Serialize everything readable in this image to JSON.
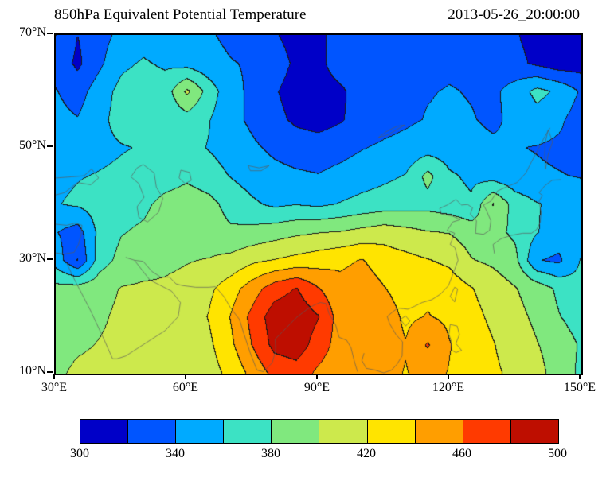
{
  "header": {
    "title": "850hPa Equivalent Potential Temperature",
    "timestamp": "2013-05-26_20:00:00"
  },
  "axes": {
    "x": {
      "min": 30,
      "max": 150,
      "ticks": [
        {
          "value": 30,
          "label": "30°E"
        },
        {
          "value": 60,
          "label": "60°E"
        },
        {
          "value": 90,
          "label": "90°E"
        },
        {
          "value": 120,
          "label": "120°E"
        },
        {
          "value": 150,
          "label": "150°E"
        }
      ]
    },
    "y": {
      "min": 10,
      "max": 70,
      "ticks": [
        {
          "value": 70,
          "label": "70°N"
        },
        {
          "value": 50,
          "label": "50°N"
        },
        {
          "value": 30,
          "label": "30°N"
        },
        {
          "value": 10,
          "label": "10°N"
        }
      ]
    }
  },
  "colorbar": {
    "labels": [
      "300",
      "340",
      "380",
      "420",
      "460",
      "500"
    ],
    "label_boundary_indices": [
      0,
      2,
      4,
      6,
      8,
      10
    ]
  },
  "chart_data": {
    "type": "heatmap",
    "title": "850hPa Equivalent Potential Temperature",
    "timestamp": "2013-05-26_20:00:00",
    "legend_position": "bottom",
    "grid": false,
    "contour_levels": [
      300,
      320,
      340,
      360,
      380,
      400,
      420,
      440,
      460,
      480,
      500
    ],
    "colors": [
      "#0000C8",
      "#0055FF",
      "#00AAFF",
      "#3CE2C4",
      "#80E87E",
      "#CDE94C",
      "#FFE400",
      "#FF9E00",
      "#FF3A00",
      "#BE0E00"
    ],
    "lon_min": 30,
    "lon_max": 150,
    "lon_step": 5,
    "lat_min": 10,
    "lat_max": 70,
    "lat_step": 5,
    "grid_order": "rows from 70N (top) to 10N (bottom), columns from 30E to 150E",
    "values": [
      [
        340,
        320,
        332,
        346,
        352,
        352,
        348,
        342,
        336,
        330,
        322,
        312,
        314,
        330,
        334,
        331,
        333,
        336,
        338,
        336,
        331,
        322,
        312,
        306,
        308
      ],
      [
        332,
        316,
        336,
        356,
        362,
        357,
        352,
        346,
        341,
        338,
        330,
        316,
        314,
        331,
        330,
        329,
        331,
        334,
        337,
        335,
        331,
        326,
        316,
        308,
        310
      ],
      [
        341,
        331,
        351,
        366,
        371,
        369,
        404,
        371,
        346,
        336,
        322,
        311,
        310,
        316,
        330,
        333,
        336,
        339,
        341,
        339,
        336,
        348,
        366,
        356,
        338
      ],
      [
        346,
        341,
        356,
        366,
        369,
        366,
        371,
        361,
        346,
        336,
        326,
        316,
        312,
        318,
        328,
        333,
        337,
        341,
        343,
        341,
        337,
        344,
        352,
        344,
        330
      ],
      [
        351,
        353,
        356,
        359,
        361,
        363,
        366,
        359,
        351,
        343,
        336,
        331,
        329,
        333,
        339,
        343,
        346,
        351,
        349,
        345,
        343,
        341,
        339,
        336,
        333
      ],
      [
        356,
        359,
        361,
        363,
        366,
        371,
        376,
        369,
        359,
        351,
        346,
        343,
        341,
        346,
        351,
        356,
        361,
        386,
        363,
        356,
        351,
        346,
        343,
        341,
        339
      ],
      [
        359,
        363,
        369,
        373,
        376,
        386,
        391,
        386,
        373,
        363,
        356,
        359,
        356,
        361,
        366,
        369,
        371,
        373,
        369,
        363,
        401,
        371,
        361,
        356,
        351
      ],
      [
        341,
        331,
        366,
        379,
        383,
        389,
        393,
        389,
        383,
        386,
        391,
        396,
        399,
        401,
        406,
        411,
        406,
        401,
        399,
        391,
        386,
        376,
        361,
        351,
        346
      ],
      [
        351,
        319,
        371,
        386,
        391,
        396,
        399,
        401,
        406,
        416,
        421,
        426,
        431,
        436,
        441,
        431,
        426,
        421,
        416,
        401,
        396,
        386,
        341,
        336,
        361
      ],
      [
        386,
        389,
        393,
        401,
        403,
        403,
        406,
        416,
        431,
        451,
        471,
        481,
        461,
        446,
        451,
        441,
        431,
        436,
        431,
        421,
        411,
        401,
        391,
        376,
        366
      ],
      [
        391,
        393,
        397,
        404,
        406,
        406,
        409,
        421,
        441,
        466,
        491,
        494,
        481,
        451,
        446,
        451,
        436,
        441,
        436,
        426,
        416,
        406,
        396,
        381,
        371
      ],
      [
        393,
        397,
        401,
        405,
        406,
        405,
        406,
        416,
        436,
        461,
        486,
        491,
        471,
        451,
        456,
        451,
        441,
        462,
        441,
        431,
        421,
        411,
        401,
        391,
        378
      ],
      [
        396,
        404,
        406,
        404,
        403,
        403,
        404,
        411,
        426,
        446,
        466,
        471,
        456,
        446,
        449,
        446,
        439,
        446,
        439,
        431,
        423,
        416,
        406,
        392,
        376
      ]
    ]
  },
  "map_outlines": [
    [
      [
        32.5,
        29.5
      ],
      [
        34,
        27
      ],
      [
        36,
        24
      ],
      [
        38,
        21
      ],
      [
        41,
        16
      ],
      [
        43,
        12.5
      ],
      [
        44,
        12.5
      ],
      [
        46,
        13
      ],
      [
        49,
        14.5
      ],
      [
        52,
        16
      ],
      [
        55,
        17.5
      ],
      [
        58,
        20
      ],
      [
        58.5,
        22.5
      ],
      [
        56.5,
        24.5
      ],
      [
        54,
        25.5
      ],
      [
        51.5,
        26.5
      ],
      [
        49.5,
        28.5
      ],
      [
        48,
        30
      ],
      [
        46,
        30.5
      ]
    ],
    [
      [
        48,
        30
      ],
      [
        50,
        29.8
      ],
      [
        52,
        28
      ],
      [
        54,
        27
      ],
      [
        56,
        27
      ],
      [
        57.5,
        25.8
      ],
      [
        59,
        25.5
      ],
      [
        62,
        25.2
      ],
      [
        65,
        25.2
      ],
      [
        66.5,
        25.3
      ]
    ],
    [
      [
        66.5,
        25.3
      ],
      [
        68.5,
        23.5
      ],
      [
        70,
        21.5
      ],
      [
        72,
        19.5
      ],
      [
        73,
        17
      ],
      [
        74.5,
        13.5
      ],
      [
        76,
        10.5
      ],
      [
        77.5,
        10.2
      ],
      [
        79.5,
        11.8
      ],
      [
        80.3,
        14
      ],
      [
        80.2,
        16
      ],
      [
        82.5,
        17.8
      ],
      [
        85,
        19.8
      ],
      [
        87.5,
        21.3
      ],
      [
        89,
        22
      ],
      [
        90.5,
        22.5
      ],
      [
        91.8,
        22.3
      ],
      [
        92.5,
        20.5
      ],
      [
        94,
        18.5
      ],
      [
        94.8,
        16.3
      ],
      [
        96.5,
        15.8
      ],
      [
        97.5,
        14.5
      ],
      [
        98.3,
        12
      ],
      [
        99,
        10.2
      ]
    ],
    [
      [
        100.5,
        13.5
      ],
      [
        100,
        12.2
      ],
      [
        101,
        10.8
      ],
      [
        103,
        10.5
      ],
      [
        105,
        10
      ],
      [
        106.8,
        10.5
      ],
      [
        108,
        11.5
      ],
      [
        109.2,
        13
      ],
      [
        109.3,
        15.5
      ],
      [
        107.8,
        16.8
      ],
      [
        106.3,
        18.8
      ],
      [
        105.8,
        20
      ],
      [
        107,
        20.8
      ],
      [
        108.2,
        21.5
      ]
    ],
    [
      [
        108.2,
        21.5
      ],
      [
        109.5,
        21.4
      ],
      [
        110.5,
        21.3
      ],
      [
        112,
        21.8
      ],
      [
        113.8,
        22.5
      ],
      [
        116,
        23
      ],
      [
        118,
        24
      ],
      [
        119.8,
        25.5
      ],
      [
        120.8,
        27.5
      ],
      [
        122,
        30
      ],
      [
        121.3,
        32.2
      ],
      [
        120.2,
        32.8
      ],
      [
        121.2,
        34.8
      ],
      [
        119.5,
        35.3
      ],
      [
        120.8,
        36.8
      ],
      [
        122.5,
        37.2
      ],
      [
        120.8,
        37.8
      ],
      [
        118.2,
        38.2
      ],
      [
        117.8,
        39.2
      ],
      [
        119.5,
        39.8
      ],
      [
        121.5,
        40.8
      ],
      [
        122.8,
        39.8
      ],
      [
        124.2,
        39.9
      ]
    ],
    [
      [
        124.2,
        39.9
      ],
      [
        125.3,
        39.3
      ],
      [
        124.8,
        38.2
      ],
      [
        126.2,
        37
      ],
      [
        126,
        34.8
      ],
      [
        127.8,
        34.6
      ],
      [
        129.2,
        35.3
      ],
      [
        129.5,
        37
      ],
      [
        128.5,
        38.8
      ],
      [
        127.8,
        39.8
      ],
      [
        129.5,
        40.5
      ],
      [
        131,
        42.3
      ],
      [
        133,
        43
      ],
      [
        135.5,
        43.8
      ],
      [
        137.5,
        45.5
      ],
      [
        138.8,
        47.5
      ],
      [
        140.2,
        49.5
      ],
      [
        141.5,
        51.5
      ],
      [
        143,
        53.5
      ]
    ],
    [
      [
        130.3,
        31.2
      ],
      [
        130,
        32.8
      ],
      [
        131.8,
        33.8
      ],
      [
        134,
        34.4
      ],
      [
        136.8,
        34.8
      ],
      [
        138.8,
        34.8
      ],
      [
        140,
        35.5
      ],
      [
        140.8,
        36.8
      ],
      [
        141,
        38.5
      ],
      [
        140.5,
        40.5
      ],
      [
        141.3,
        41.5
      ],
      [
        140.5,
        42
      ],
      [
        141.8,
        43.2
      ],
      [
        143.5,
        44.2
      ],
      [
        145.5,
        44.3
      ]
    ],
    [
      [
        120.2,
        23.6
      ],
      [
        121.2,
        25.2
      ],
      [
        121.9,
        24.9
      ],
      [
        121.2,
        22.6
      ],
      [
        120.2,
        23.6
      ]
    ],
    [
      [
        108.8,
        19.5
      ],
      [
        110,
        20.1
      ],
      [
        111,
        19.2
      ],
      [
        110,
        18.3
      ],
      [
        108.8,
        19.5
      ]
    ],
    [
      [
        120.2,
        18.6
      ],
      [
        121.8,
        18.3
      ],
      [
        122.3,
        16.8
      ],
      [
        121.5,
        15.2
      ],
      [
        122.8,
        14
      ],
      [
        121.5,
        13.6
      ],
      [
        120.6,
        14
      ],
      [
        120.3,
        16
      ],
      [
        119.9,
        16.8
      ],
      [
        120.2,
        18.6
      ]
    ],
    [
      [
        50,
        47
      ],
      [
        52.5,
        45.5
      ],
      [
        53,
        43
      ],
      [
        54.5,
        41
      ],
      [
        53.5,
        38.5
      ],
      [
        51,
        36.8
      ],
      [
        49,
        37.6
      ],
      [
        48.6,
        39.5
      ],
      [
        50.2,
        41.2
      ],
      [
        49,
        43.6
      ],
      [
        47.2,
        44.8
      ],
      [
        48.6,
        46.4
      ],
      [
        50,
        47
      ]
    ],
    [
      [
        58.6,
        46
      ],
      [
        60.6,
        45.6
      ],
      [
        61,
        44.2
      ],
      [
        59.6,
        43.6
      ],
      [
        58.2,
        44.6
      ],
      [
        58.6,
        46
      ]
    ],
    [
      [
        74,
        46.8
      ],
      [
        76.5,
        46.4
      ],
      [
        78.8,
        46.8
      ],
      [
        77,
        45.9
      ],
      [
        74.5,
        45.9
      ],
      [
        74,
        46.8
      ]
    ],
    [
      [
        103.8,
        51.8
      ],
      [
        106,
        52.3
      ],
      [
        108,
        53.2
      ],
      [
        109.8,
        54
      ],
      [
        108,
        53.8
      ],
      [
        105.5,
        52.8
      ],
      [
        103.8,
        51.8
      ]
    ],
    [
      [
        30,
        44.6
      ],
      [
        33.5,
        44.8
      ],
      [
        36.5,
        45
      ],
      [
        38.2,
        46.2
      ],
      [
        39.8,
        44.6
      ],
      [
        38,
        43.4
      ],
      [
        35,
        43.8
      ],
      [
        32,
        42
      ],
      [
        30,
        41.6
      ]
    ],
    [
      [
        30,
        36.4
      ],
      [
        32.5,
        36.2
      ],
      [
        34.5,
        36.6
      ],
      [
        36,
        36.2
      ],
      [
        35.8,
        34.5
      ],
      [
        35.2,
        32.8
      ],
      [
        34.2,
        31.4
      ],
      [
        32,
        31.1
      ],
      [
        30,
        31.3
      ]
    ],
    [
      [
        142,
        46.2
      ],
      [
        142.6,
        48.8
      ],
      [
        143.6,
        51
      ],
      [
        142.6,
        53.2
      ],
      [
        141.9,
        50.8
      ],
      [
        141.8,
        48.2
      ],
      [
        142,
        46.2
      ]
    ]
  ]
}
